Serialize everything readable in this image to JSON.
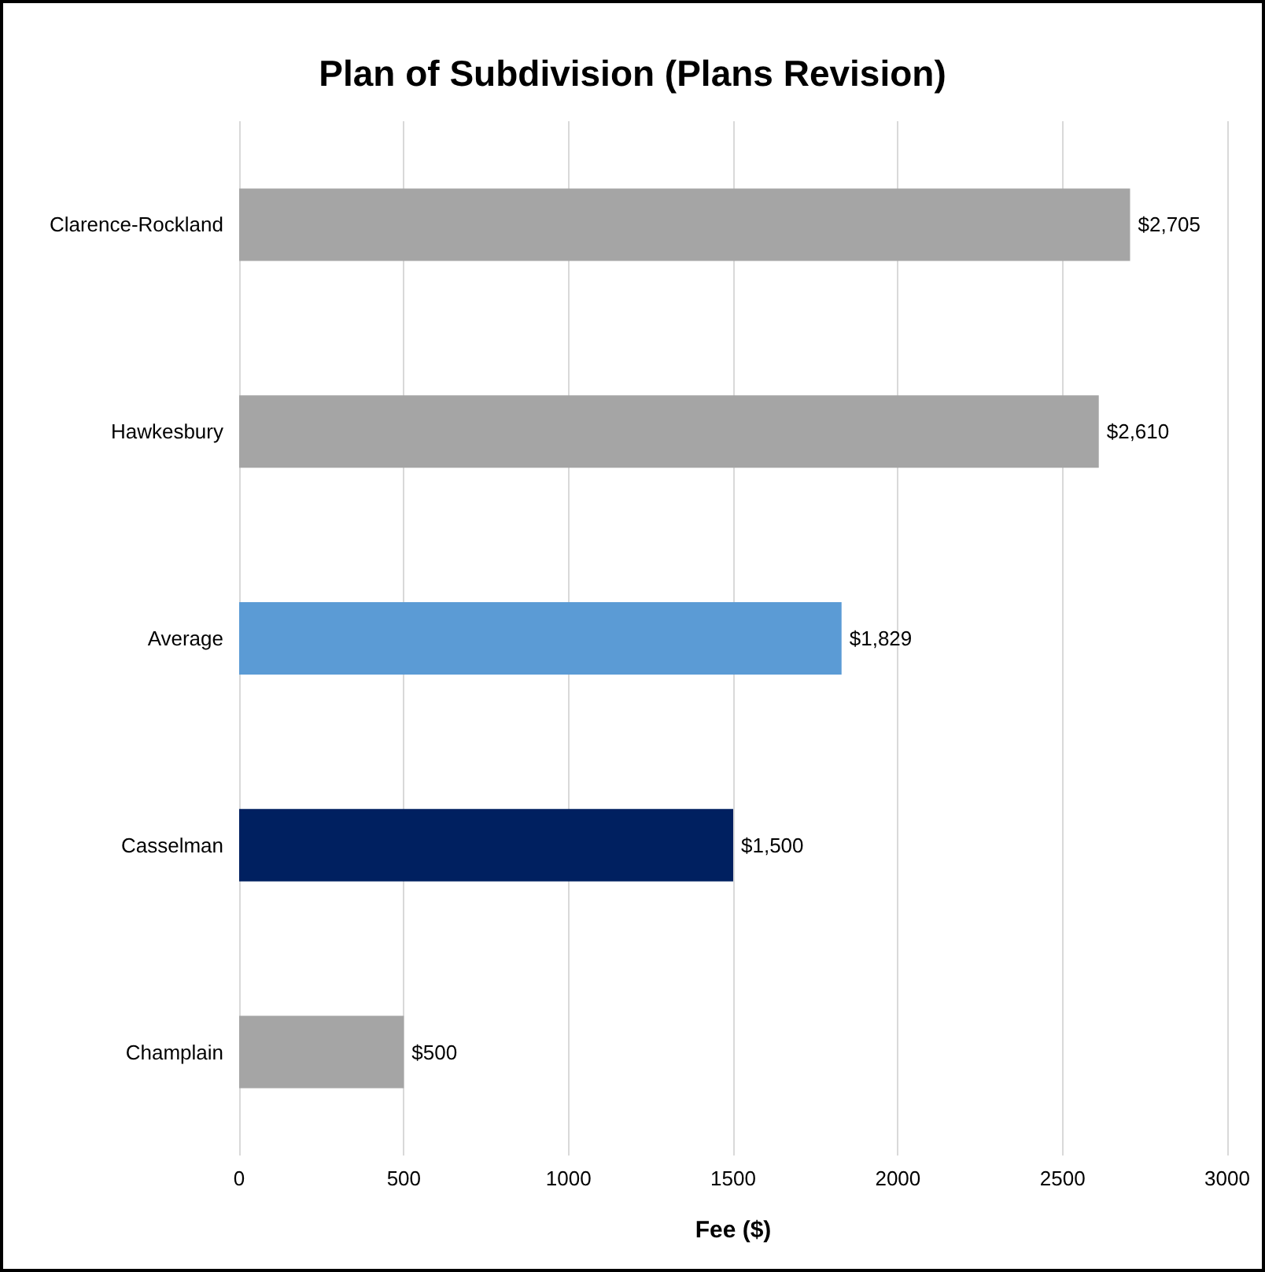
{
  "chart_data": {
    "type": "bar",
    "orientation": "horizontal",
    "title": "Plan of Subdivision (Plans Revision)",
    "xlabel": "Fee ($)",
    "categories": [
      "Clarence-Rockland",
      "Hawkesbury",
      "Average",
      "Casselman",
      "Champlain"
    ],
    "values": [
      2705,
      2610,
      1829,
      1500,
      500
    ],
    "colors": [
      "#a5a5a5",
      "#a5a5a5",
      "#5b9bd5",
      "#002060",
      "#a5a5a5"
    ],
    "value_labels": [
      "$2,705",
      "$2,610",
      "$1,829",
      "$1,500",
      "$500"
    ],
    "xlim": [
      0,
      3000
    ],
    "xticks": [
      0,
      500,
      1000,
      1500,
      2000,
      2500,
      3000
    ],
    "grid": "x"
  }
}
